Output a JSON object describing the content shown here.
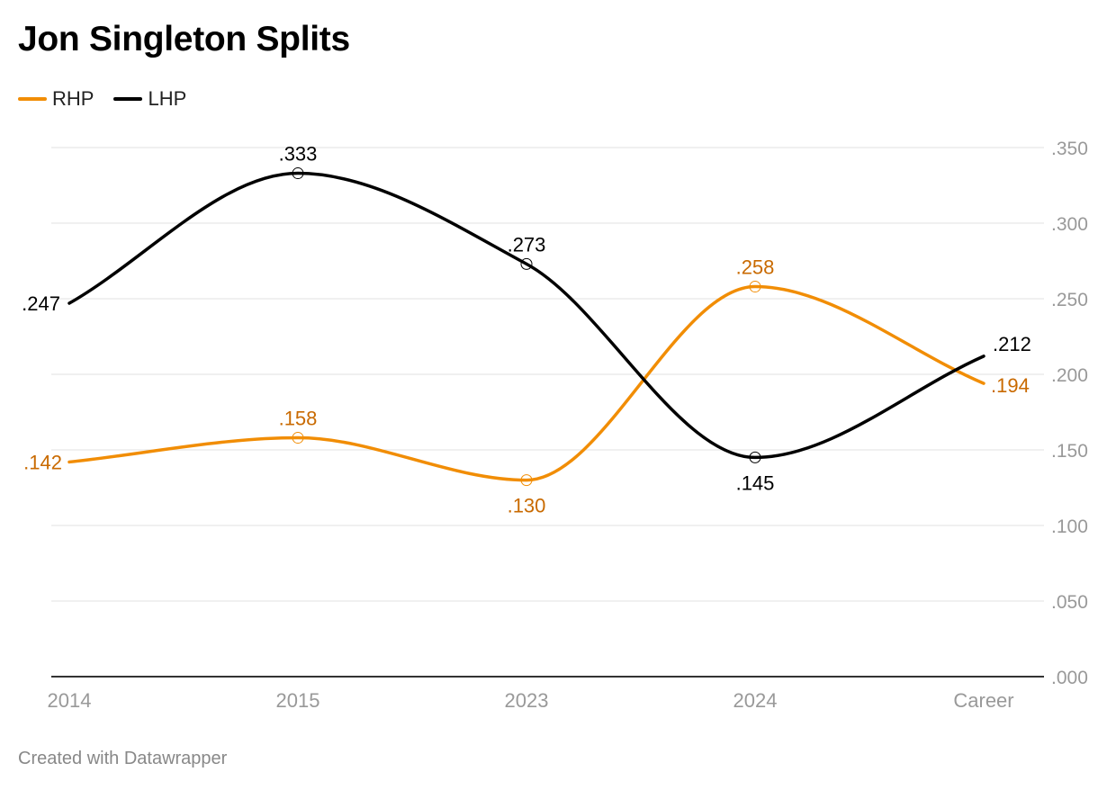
{
  "title": "Jon Singleton Splits",
  "footer": "Created with Datawrapper",
  "colors": {
    "RHP": "#f18d05",
    "RHP_label": "#c96a00",
    "LHP": "#000000",
    "grid": "#e2e2e2",
    "axis_text": "#999999",
    "baseline": "#333333"
  },
  "chart_data": {
    "type": "line",
    "title": "Jon Singleton Splits",
    "categories": [
      "2014",
      "2015",
      "2023",
      "2024",
      "Career"
    ],
    "series": [
      {
        "name": "RHP",
        "values": [
          0.142,
          0.158,
          0.13,
          0.258,
          0.194
        ],
        "labels": [
          ".142",
          ".158",
          ".130",
          ".258",
          ".194"
        ]
      },
      {
        "name": "LHP",
        "values": [
          0.247,
          0.333,
          0.273,
          0.145,
          0.212
        ],
        "labels": [
          ".247",
          ".333",
          ".273",
          ".145",
          ".212"
        ]
      }
    ],
    "ylim": [
      0,
      0.35
    ],
    "yticks": [
      0,
      0.05,
      0.1,
      0.15,
      0.2,
      0.25,
      0.3,
      0.35
    ],
    "ytick_labels": [
      ".000",
      ".050",
      ".100",
      ".150",
      ".200",
      ".250",
      ".300",
      ".350"
    ],
    "grid": true,
    "y_axis_side": "right",
    "legend_position": "top-left",
    "curve": "smooth"
  }
}
